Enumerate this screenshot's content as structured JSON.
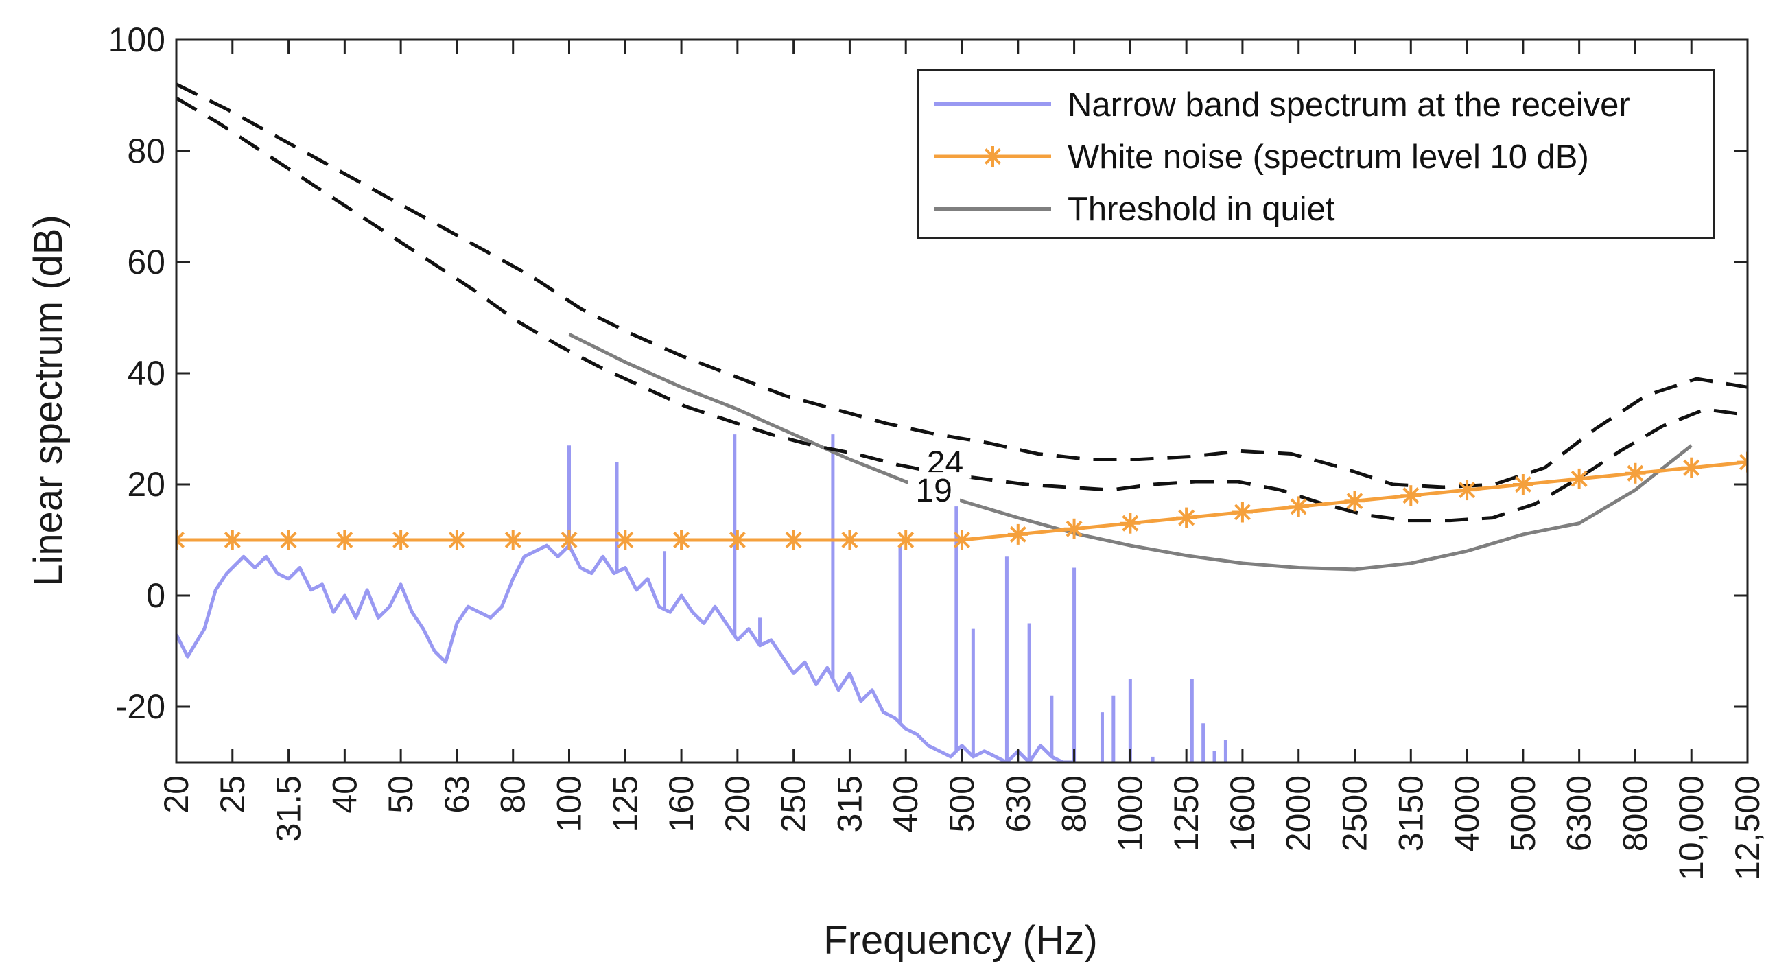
{
  "chart_data": {
    "type": "line",
    "xlabel": "Frequency (Hz)",
    "ylabel": "Linear spectrum (dB)",
    "ylim": [
      -30,
      100
    ],
    "yticks": [
      -20,
      0,
      20,
      40,
      60,
      80,
      100
    ],
    "grid": false,
    "legend_position": "top-right",
    "categories": [
      "20",
      "25",
      "31.5",
      "40",
      "50",
      "63",
      "80",
      "100",
      "125",
      "160",
      "200",
      "250",
      "315",
      "400",
      "500",
      "630",
      "800",
      "1000",
      "1250",
      "1600",
      "2000",
      "2500",
      "3150",
      "4000",
      "5000",
      "6300",
      "8000",
      "10,000",
      "12,500"
    ],
    "series": [
      {
        "name": "Narrow band spectrum at the receiver",
        "color": "#9999f2",
        "noise_floor": [
          [
            0,
            -7
          ],
          [
            0.2,
            -11
          ],
          [
            0.5,
            -6
          ],
          [
            0.7,
            1
          ],
          [
            0.9,
            4
          ],
          [
            1.0,
            5
          ],
          [
            1.2,
            7
          ],
          [
            1.4,
            5
          ],
          [
            1.6,
            7
          ],
          [
            1.8,
            4
          ],
          [
            2.0,
            3
          ],
          [
            2.2,
            5
          ],
          [
            2.4,
            1
          ],
          [
            2.6,
            2
          ],
          [
            2.8,
            -3
          ],
          [
            3.0,
            0
          ],
          [
            3.2,
            -4
          ],
          [
            3.4,
            1
          ],
          [
            3.6,
            -4
          ],
          [
            3.8,
            -2
          ],
          [
            4.0,
            2
          ],
          [
            4.2,
            -3
          ],
          [
            4.4,
            -6
          ],
          [
            4.6,
            -10
          ],
          [
            4.8,
            -12
          ],
          [
            5.0,
            -5
          ],
          [
            5.2,
            -2
          ],
          [
            5.4,
            -3
          ],
          [
            5.6,
            -4
          ],
          [
            5.8,
            -2
          ],
          [
            6.0,
            3
          ],
          [
            6.2,
            7
          ],
          [
            6.4,
            8
          ],
          [
            6.6,
            9
          ],
          [
            6.8,
            7
          ],
          [
            7.0,
            9
          ],
          [
            7.2,
            5
          ],
          [
            7.4,
            4
          ],
          [
            7.6,
            7
          ],
          [
            7.8,
            4
          ],
          [
            8.0,
            5
          ],
          [
            8.2,
            1
          ],
          [
            8.4,
            3
          ],
          [
            8.6,
            -2
          ],
          [
            8.8,
            -3
          ],
          [
            9.0,
            0
          ],
          [
            9.2,
            -3
          ],
          [
            9.4,
            -5
          ],
          [
            9.6,
            -2
          ],
          [
            9.8,
            -5
          ],
          [
            10.0,
            -8
          ],
          [
            10.2,
            -6
          ],
          [
            10.4,
            -9
          ],
          [
            10.6,
            -8
          ],
          [
            10.8,
            -11
          ],
          [
            11.0,
            -14
          ],
          [
            11.2,
            -12
          ],
          [
            11.4,
            -16
          ],
          [
            11.6,
            -13
          ],
          [
            11.8,
            -17
          ],
          [
            12.0,
            -14
          ],
          [
            12.2,
            -19
          ],
          [
            12.4,
            -17
          ],
          [
            12.6,
            -21
          ],
          [
            12.8,
            -22
          ],
          [
            13.0,
            -24
          ],
          [
            13.2,
            -25
          ],
          [
            13.4,
            -27
          ],
          [
            13.6,
            -28
          ],
          [
            13.8,
            -29
          ],
          [
            14.0,
            -27
          ],
          [
            14.2,
            -29
          ],
          [
            14.4,
            -28
          ],
          [
            14.6,
            -29
          ],
          [
            14.8,
            -30
          ],
          [
            15.0,
            -28
          ],
          [
            15.2,
            -30
          ],
          [
            15.4,
            -27
          ],
          [
            15.6,
            -29
          ],
          [
            15.8,
            -30
          ],
          [
            16.0,
            -30
          ]
        ],
        "peaks": [
          {
            "x": 7.0,
            "y": 27
          },
          {
            "x": 7.85,
            "y": 24
          },
          {
            "x": 8.7,
            "y": 8
          },
          {
            "x": 9.95,
            "y": 29
          },
          {
            "x": 10.4,
            "y": -4
          },
          {
            "x": 11.7,
            "y": 29
          },
          {
            "x": 12.9,
            "y": 9
          },
          {
            "x": 13.9,
            "y": 17
          },
          {
            "x": 14.2,
            "y": -6
          },
          {
            "x": 14.8,
            "y": 7
          },
          {
            "x": 15.2,
            "y": -5
          },
          {
            "x": 15.6,
            "y": -18
          },
          {
            "x": 16.0,
            "y": 5
          },
          {
            "x": 16.5,
            "y": -21
          },
          {
            "x": 16.7,
            "y": -18
          },
          {
            "x": 17.0,
            "y": -15
          },
          {
            "x": 17.4,
            "y": -29
          },
          {
            "x": 18.1,
            "y": -15
          },
          {
            "x": 18.3,
            "y": -23
          },
          {
            "x": 18.5,
            "y": -28
          },
          {
            "x": 18.7,
            "y": -26
          }
        ]
      },
      {
        "name": "White noise (spectrum level 10 dB)",
        "color": "#f5a03c",
        "x": [
          0,
          1,
          2,
          3,
          4,
          5,
          6,
          7,
          8,
          9,
          10,
          11,
          12,
          13,
          14,
          15,
          16,
          17,
          18,
          19,
          20,
          21,
          22,
          23,
          24,
          25,
          26,
          27,
          28
        ],
        "values": [
          10,
          10,
          10,
          10,
          10,
          10,
          10,
          10,
          10,
          10,
          10,
          10,
          10,
          10,
          10,
          11,
          12,
          13,
          14,
          15,
          16,
          17,
          18,
          19,
          20,
          21,
          22,
          23,
          24
        ]
      },
      {
        "name": "Threshold in quiet",
        "color": "#7f7f7f",
        "x": [
          7,
          8,
          9,
          10,
          11,
          12,
          13,
          14,
          15,
          16,
          17,
          18,
          19,
          20,
          21,
          22,
          23,
          24,
          25,
          26,
          27
        ],
        "values": [
          47,
          42,
          37.5,
          33.5,
          29,
          24.5,
          20.5,
          17,
          14,
          11.2,
          9,
          7.2,
          5.8,
          5,
          4.7,
          5.8,
          8,
          11,
          13,
          19,
          27
        ]
      }
    ],
    "contours": [
      {
        "label": "24",
        "values": [
          92,
          87.5,
          82.5,
          77.5,
          72.5,
          67.5,
          62.5,
          57.5,
          51.5,
          47,
          43,
          39.5,
          36,
          33.5,
          31,
          29,
          27.5,
          25.5,
          24.5,
          24.5,
          25,
          26,
          25.5,
          23,
          20,
          19.5,
          20,
          23,
          30,
          36,
          39,
          37.5
        ]
      },
      {
        "label": "19",
        "values": [
          89.5,
          85,
          80,
          75,
          70,
          65,
          60,
          55,
          49.5,
          45,
          41,
          37.5,
          34,
          31.5,
          29,
          27,
          25.5,
          23.5,
          22,
          21,
          20,
          19.5,
          19,
          20,
          20.5,
          20.5,
          19,
          16.5,
          14.5,
          13.5,
          13.5,
          14,
          16.5,
          21,
          26,
          30.5,
          33.5,
          32.5
        ]
      }
    ]
  }
}
